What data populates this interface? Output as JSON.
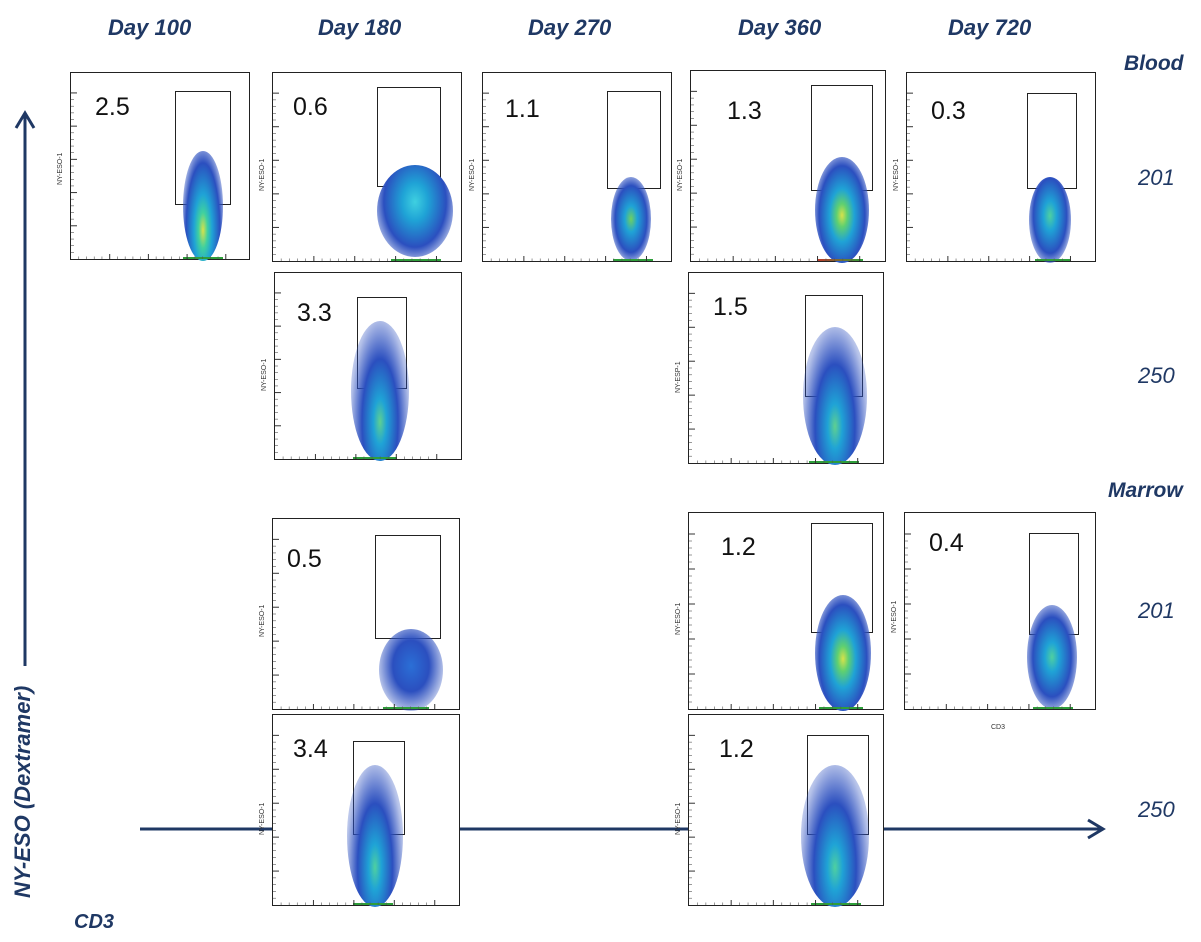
{
  "columns": [
    "Day 100",
    "Day 180",
    "Day 270",
    "Day 360",
    "Day 720"
  ],
  "sections": {
    "blood": "Blood",
    "marrow": "Marrow"
  },
  "rows": {
    "r201": "201",
    "r250": "250"
  },
  "axes": {
    "y": "NY-ESO (Dextramer)",
    "x": "CD3"
  },
  "panel_labels": {
    "nyeso": "NY-ESO-1",
    "nyesp": "NY-ESP-1",
    "cd3": "CD3"
  },
  "panels": {
    "blood_201_d100": "2.5",
    "blood_201_d180": "0.6",
    "blood_201_d270": "1.1",
    "blood_201_d360": "1.3",
    "blood_201_d720": "0.3",
    "blood_250_d180": "3.3",
    "blood_250_d360": "1.5",
    "marrow_201_d180": "0.5",
    "marrow_201_d360": "1.2",
    "marrow_201_d720": "0.4",
    "marrow_250_d180": "3.4",
    "marrow_250_d360": "1.2"
  },
  "colors": {
    "accent": "#1f3864",
    "low": "#2b4fbf",
    "mid": "#1fa3d6",
    "high": "#d8e24a"
  }
}
